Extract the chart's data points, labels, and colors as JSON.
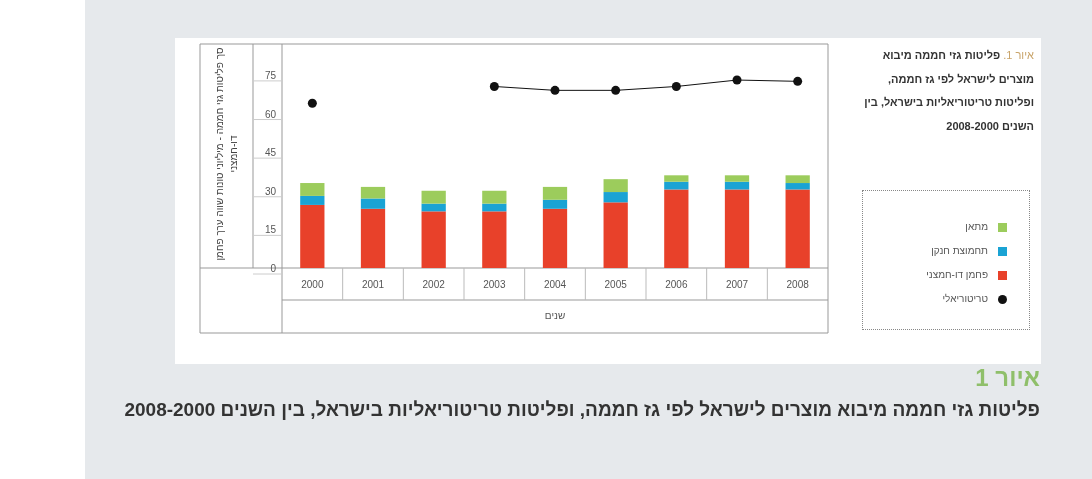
{
  "chart_data": {
    "type": "bar",
    "stacked": true,
    "title": "איור 1",
    "subtitle": "פליטות גזי חממה מיבוא מוצרים לישראל לפי גז חממה, ופליטות טריטוריאליות בישראל, בין השנים 2008-2000",
    "annotations": [
      "איור 1. פליטות גזי חממה מיבוא מוצרים לישראל לפי גז חממה, ופליטות טריטוריאליות בישראל, בין השנים 2008-2000"
    ],
    "xlabel": "שנים",
    "ylabel": "סך פליטות גזי חממה - מיליוני טונות שווה ערך פחמן דו-חמצני",
    "categories": [
      "2000",
      "2001",
      "2002",
      "2003",
      "2004",
      "2005",
      "2006",
      "2007",
      "2008"
    ],
    "series": [
      {
        "name": "פחמן דו-חמצני",
        "color": "#e8412a",
        "values": [
          24.5,
          23,
          22,
          22,
          23,
          25.5,
          30.5,
          30.5,
          30.5
        ]
      },
      {
        "name": "תחמוצת חנקן",
        "color": "#1aa3d4",
        "values": [
          3.5,
          4,
          3,
          3,
          3.5,
          4,
          3,
          3,
          2.5
        ]
      },
      {
        "name": "מתאן",
        "color": "#9ccc5c",
        "values": [
          5,
          4.5,
          5,
          5,
          5,
          5,
          2.5,
          2.5,
          3
        ]
      },
      {
        "name": "טריטוריאלי",
        "type": "line",
        "color": "#111111",
        "marker": "circle",
        "values": [
          64,
          null,
          null,
          70.5,
          69,
          69,
          70.5,
          73,
          72.5
        ]
      }
    ],
    "ylim": [
      0,
      87
    ],
    "yticks": [
      0,
      15,
      30,
      45,
      60,
      75
    ],
    "legend": "right",
    "grid": false
  }
}
